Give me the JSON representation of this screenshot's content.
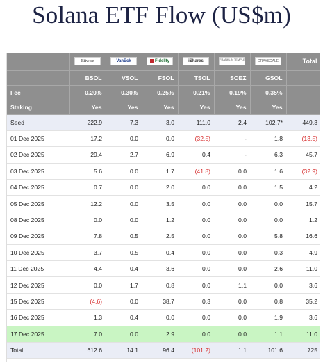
{
  "title": "Solana ETF Flow (US$m)",
  "header": {
    "total_label": "Total",
    "issuer_logos": [
      {
        "name": "bitwise-logo",
        "text": "Bitwise"
      },
      {
        "name": "vaneck-logo",
        "text": "VanEck"
      },
      {
        "name": "fidelity-logo",
        "text": "Fidelity"
      },
      {
        "name": "ishares-logo",
        "text": "iShares"
      },
      {
        "name": "franklin-templeton-logo",
        "text": "FRANKLIN TEMPLETON"
      },
      {
        "name": "grayscale-logo",
        "text": "GRAYSCALE"
      }
    ],
    "tickers": [
      "BSOL",
      "VSOL",
      "FSOL",
      "TSOL",
      "SOEZ",
      "GSOL"
    ]
  },
  "fee": {
    "label": "Fee",
    "values": [
      "0.20%",
      "0.30%",
      "0.25%",
      "0.21%",
      "0.19%",
      "0.35%"
    ]
  },
  "staking": {
    "label": "Staking",
    "values": [
      "Yes",
      "Yes",
      "Yes",
      "Yes",
      "Yes",
      "Yes"
    ]
  },
  "rows": [
    {
      "date": "Seed",
      "values": [
        "222.9",
        "7.3",
        "3.0",
        "111.0",
        "2.4",
        "102.7*"
      ],
      "total": "449.3",
      "style": "seed"
    },
    {
      "date": "01 Dec 2025",
      "values": [
        "17.2",
        "0.0",
        "0.0",
        "(32.5)",
        "-",
        "1.8"
      ],
      "total": "(13.5)"
    },
    {
      "date": "02 Dec 2025",
      "values": [
        "29.4",
        "2.7",
        "6.9",
        "0.4",
        "-",
        "6.3"
      ],
      "total": "45.7"
    },
    {
      "date": "03 Dec 2025",
      "values": [
        "5.6",
        "0.0",
        "1.7",
        "(41.8)",
        "0.0",
        "1.6"
      ],
      "total": "(32.9)"
    },
    {
      "date": "04 Dec 2025",
      "values": [
        "0.7",
        "0.0",
        "2.0",
        "0.0",
        "0.0",
        "1.5"
      ],
      "total": "4.2"
    },
    {
      "date": "05 Dec 2025",
      "values": [
        "12.2",
        "0.0",
        "3.5",
        "0.0",
        "0.0",
        "0.0"
      ],
      "total": "15.7"
    },
    {
      "date": "08 Dec 2025",
      "values": [
        "0.0",
        "0.0",
        "1.2",
        "0.0",
        "0.0",
        "0.0"
      ],
      "total": "1.2"
    },
    {
      "date": "09 Dec 2025",
      "values": [
        "7.8",
        "0.5",
        "2.5",
        "0.0",
        "0.0",
        "5.8"
      ],
      "total": "16.6"
    },
    {
      "date": "10 Dec 2025",
      "values": [
        "3.7",
        "0.5",
        "0.4",
        "0.0",
        "0.0",
        "0.3"
      ],
      "total": "4.9"
    },
    {
      "date": "11 Dec 2025",
      "values": [
        "4.4",
        "0.4",
        "3.6",
        "0.0",
        "0.0",
        "2.6"
      ],
      "total": "11.0"
    },
    {
      "date": "12 Dec 2025",
      "values": [
        "0.0",
        "1.7",
        "0.8",
        "0.0",
        "1.1",
        "0.0"
      ],
      "total": "3.6"
    },
    {
      "date": "15 Dec 2025",
      "values": [
        "(4.6)",
        "0.0",
        "38.7",
        "0.3",
        "0.0",
        "0.8"
      ],
      "total": "35.2"
    },
    {
      "date": "16 Dec 2025",
      "values": [
        "1.3",
        "0.4",
        "0.0",
        "0.0",
        "0.0",
        "1.9"
      ],
      "total": "3.6"
    },
    {
      "date": "17 Dec 2025",
      "values": [
        "7.0",
        "0.0",
        "2.9",
        "0.0",
        "0.0",
        "1.1"
      ],
      "total": "11.0",
      "style": "hl"
    },
    {
      "date": "Total",
      "values": [
        "612.6",
        "14.1",
        "96.4",
        "(101.2)",
        "1.1",
        "101.6"
      ],
      "total": "725",
      "style": "total"
    }
  ],
  "colors": {
    "header_bg": "#8f8f8f",
    "seed_bg": "#eaedf6",
    "highlight_bg": "#c9f5c3",
    "negative": "#d62828"
  }
}
